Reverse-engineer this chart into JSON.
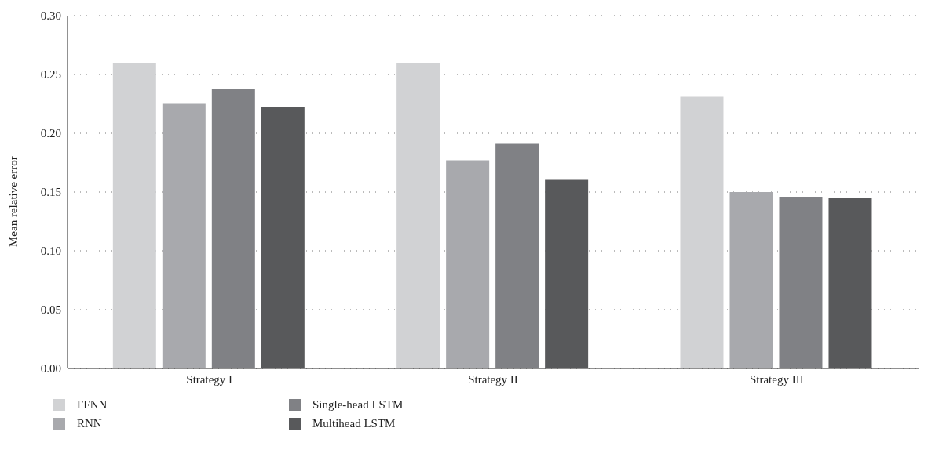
{
  "chart_data": {
    "type": "bar",
    "ylabel": "Mean relative error",
    "categories": [
      "Strategy I",
      "Strategy II",
      "Strategy III"
    ],
    "series": [
      {
        "name": "FFNN",
        "color": "#d1d2d4",
        "values": [
          0.26,
          0.26,
          0.231
        ]
      },
      {
        "name": "RNN",
        "color": "#a8a9ad",
        "values": [
          0.225,
          0.177,
          0.15
        ]
      },
      {
        "name": "Single-head LSTM",
        "color": "#808185",
        "values": [
          0.238,
          0.191,
          0.146
        ]
      },
      {
        "name": "Multihead LSTM",
        "color": "#58595b",
        "values": [
          0.222,
          0.161,
          0.145
        ]
      }
    ],
    "ylim": [
      0,
      0.3
    ],
    "yticks": [
      {
        "value": 0,
        "label": "0.00"
      },
      {
        "value": 0.05,
        "label": "0.05"
      },
      {
        "value": 0.1,
        "label": "0.10"
      },
      {
        "value": 0.15,
        "label": "0.15"
      },
      {
        "value": 0.2,
        "label": "0.20"
      },
      {
        "value": 0.25,
        "label": "0.25"
      },
      {
        "value": 0.3,
        "label": "0.30"
      }
    ],
    "grid": "y",
    "legend": "bottom left"
  }
}
